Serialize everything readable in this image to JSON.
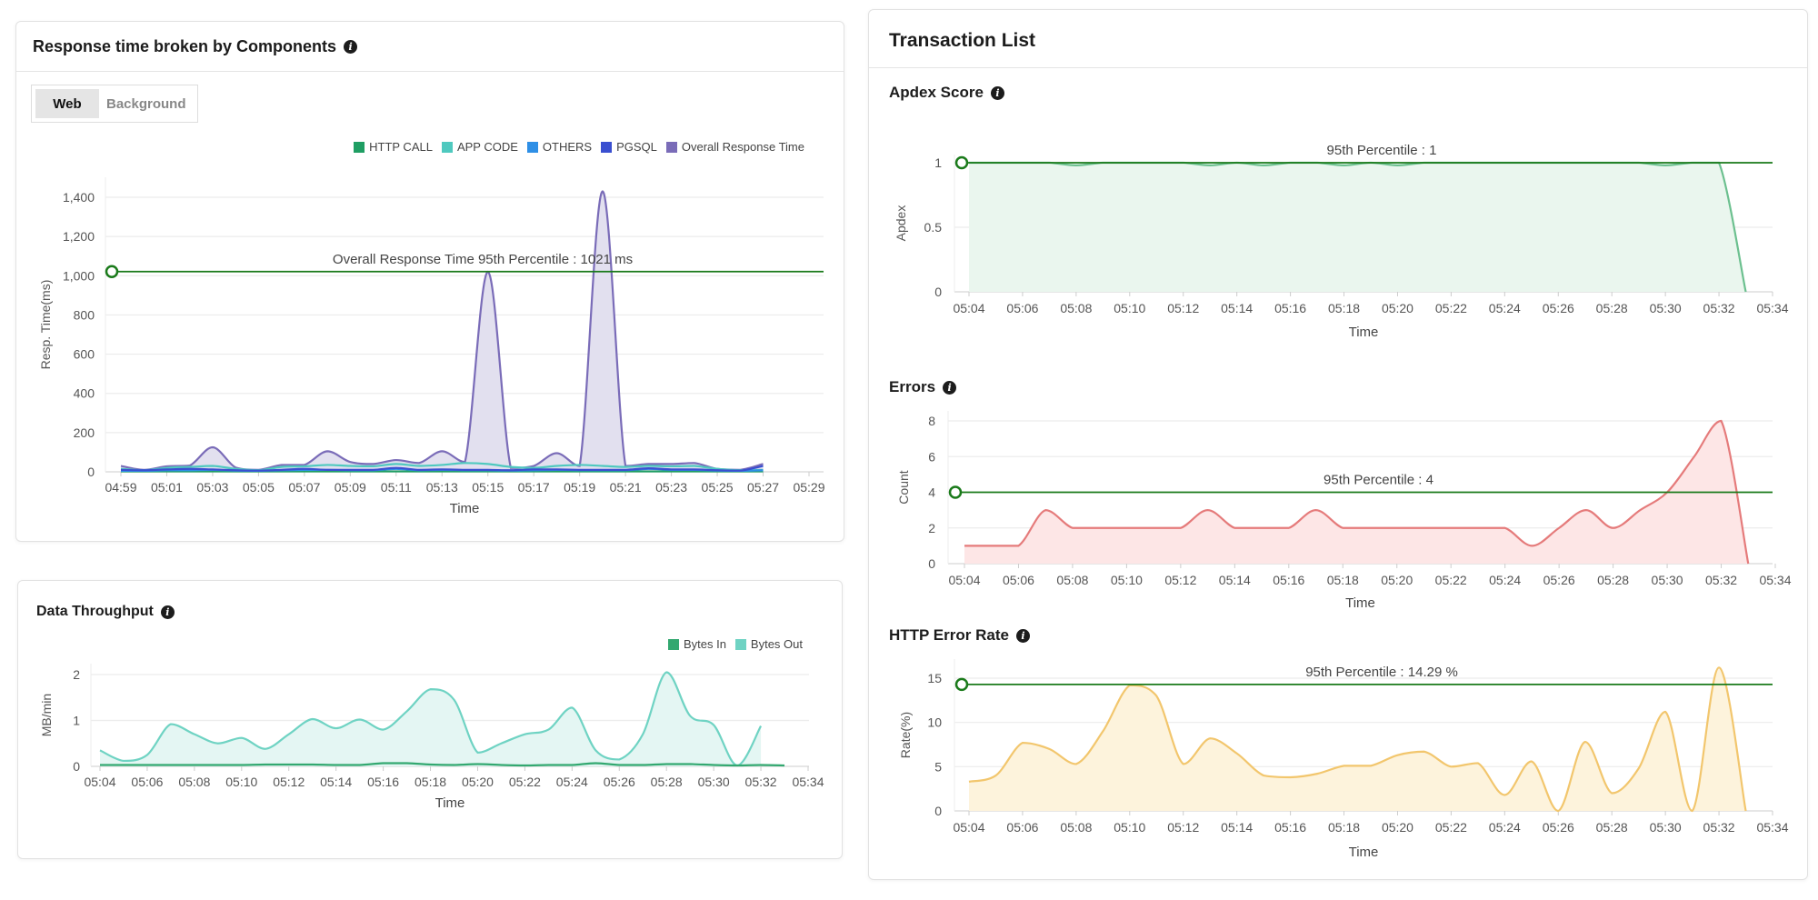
{
  "left_top_panel": {
    "title": "Response time broken by Components",
    "info_icon": "info-icon",
    "toggle": {
      "options": [
        "Web",
        "Background"
      ],
      "selected": "Web"
    }
  },
  "left_bottom_panel": {
    "title": "Data Throughput",
    "info_icon": "info-icon"
  },
  "right_panel": {
    "title": "Transaction List",
    "sections": [
      {
        "title": "Apdex Score"
      },
      {
        "title": "Errors"
      },
      {
        "title": "HTTP Error Rate"
      }
    ]
  },
  "chart_data": [
    {
      "type": "area",
      "xlabel": "Time",
      "ylabel": "Resp. Time(ms)",
      "x_ticks": [
        "04:59",
        "05:01",
        "05:03",
        "05:05",
        "05:07",
        "05:09",
        "05:11",
        "05:13",
        "05:15",
        "05:17",
        "05:19",
        "05:21",
        "05:23",
        "05:25",
        "05:27",
        "05:29"
      ],
      "y_ticks": [
        "0",
        "200",
        "400",
        "600",
        "800",
        "1,000",
        "1,200",
        "1,400"
      ],
      "y_tick_values": [
        0,
        200,
        400,
        600,
        800,
        1000,
        1200,
        1400
      ],
      "ylim": [
        0,
        1500
      ],
      "grid": true,
      "legend_placement": "top-right",
      "percentile": {
        "label": "Overall Response Time 95th Percentile : 1021 ms",
        "value": 1021,
        "color": "#1a7a1a"
      },
      "x": [
        "04:59",
        "05:00",
        "05:01",
        "05:02",
        "05:03",
        "05:04",
        "05:05",
        "05:06",
        "05:07",
        "05:08",
        "05:09",
        "05:10",
        "05:11",
        "05:12",
        "05:13",
        "05:14",
        "05:15",
        "05:16",
        "05:17",
        "05:18",
        "05:19",
        "05:20",
        "05:21",
        "05:22",
        "05:23",
        "05:24",
        "05:25",
        "05:26",
        "05:27"
      ],
      "series": [
        {
          "name": "HTTP CALL",
          "color": "#1f9e63",
          "fill": false,
          "values": [
            2,
            2,
            2,
            2,
            2,
            2,
            2,
            2,
            2,
            2,
            2,
            2,
            2,
            2,
            2,
            2,
            2,
            2,
            2,
            2,
            2,
            2,
            2,
            2,
            2,
            2,
            2,
            2,
            2
          ]
        },
        {
          "name": "APP CODE",
          "color": "#4fc9bf",
          "fill": false,
          "values": [
            15,
            8,
            20,
            25,
            30,
            15,
            8,
            25,
            28,
            35,
            30,
            28,
            40,
            30,
            35,
            45,
            40,
            25,
            20,
            30,
            35,
            30,
            25,
            30,
            28,
            30,
            15,
            8,
            10
          ]
        },
        {
          "name": "OTHERS",
          "color": "#2e8fe6",
          "fill": false,
          "values": [
            5,
            5,
            8,
            8,
            10,
            6,
            5,
            8,
            10,
            10,
            8,
            8,
            15,
            8,
            10,
            8,
            8,
            6,
            8,
            10,
            8,
            8,
            8,
            15,
            10,
            10,
            6,
            5,
            8
          ]
        },
        {
          "name": "PGSQL",
          "color": "#3a4fd0",
          "fill": false,
          "values": [
            10,
            8,
            12,
            15,
            12,
            8,
            6,
            10,
            15,
            10,
            10,
            10,
            20,
            10,
            12,
            10,
            10,
            8,
            12,
            12,
            10,
            10,
            10,
            18,
            12,
            12,
            8,
            6,
            30
          ]
        },
        {
          "name": "Overall Response Time",
          "color": "#7a6cb8",
          "fill": true,
          "fill_color": "#e2e0ef",
          "values": [
            30,
            10,
            28,
            32,
            125,
            22,
            10,
            35,
            35,
            105,
            50,
            40,
            60,
            45,
            105,
            50,
            1020,
            20,
            30,
            95,
            30,
            1430,
            30,
            40,
            40,
            45,
            15,
            10,
            40
          ]
        }
      ]
    },
    {
      "type": "area",
      "xlabel": "Time",
      "ylabel": "MB/min",
      "x_ticks": [
        "05:04",
        "05:06",
        "05:08",
        "05:10",
        "05:12",
        "05:14",
        "05:16",
        "05:18",
        "05:20",
        "05:22",
        "05:24",
        "05:26",
        "05:28",
        "05:30",
        "05:32",
        "05:34"
      ],
      "y_ticks": [
        "0",
        "1",
        "2"
      ],
      "y_tick_values": [
        0,
        1,
        2
      ],
      "ylim": [
        0,
        2.2
      ],
      "grid": true,
      "legend_placement": "top-right",
      "x": [
        "05:04",
        "05:05",
        "05:06",
        "05:07",
        "05:08",
        "05:09",
        "05:10",
        "05:11",
        "05:12",
        "05:13",
        "05:14",
        "05:15",
        "05:16",
        "05:17",
        "05:18",
        "05:19",
        "05:20",
        "05:21",
        "05:22",
        "05:23",
        "05:24",
        "05:25",
        "05:26",
        "05:27",
        "05:28",
        "05:29",
        "05:30",
        "05:31",
        "05:32",
        "05:33"
      ],
      "series": [
        {
          "name": "Bytes In",
          "color": "#33a870",
          "fill": false,
          "values": [
            0.03,
            0.03,
            0.03,
            0.03,
            0.03,
            0.03,
            0.03,
            0.04,
            0.04,
            0.04,
            0.03,
            0.03,
            0.07,
            0.07,
            0.04,
            0.03,
            0.05,
            0.03,
            0.02,
            0.03,
            0.03,
            0.07,
            0.03,
            0.03,
            0.05,
            0.05,
            0.03,
            0.02,
            0.03,
            0.02
          ]
        },
        {
          "name": "Bytes Out",
          "color": "#6fd3c3",
          "fill": true,
          "fill_color": "#e4f6f3",
          "values": [
            0.35,
            0.12,
            0.25,
            0.92,
            0.7,
            0.5,
            0.62,
            0.38,
            0.7,
            1.03,
            0.83,
            1.02,
            0.8,
            1.2,
            1.68,
            1.45,
            0.3,
            0.5,
            0.7,
            0.8,
            1.28,
            0.35,
            0.15,
            0.7,
            2.05,
            1.1,
            0.9,
            0.02,
            0.88,
            null
          ]
        }
      ]
    },
    {
      "type": "area",
      "xlabel": "Time",
      "ylabel": "Apdex",
      "x_ticks": [
        "05:04",
        "05:06",
        "05:08",
        "05:10",
        "05:12",
        "05:14",
        "05:16",
        "05:18",
        "05:20",
        "05:22",
        "05:24",
        "05:26",
        "05:28",
        "05:30",
        "05:32",
        "05:34"
      ],
      "y_ticks": [
        "0",
        "0.5",
        "1"
      ],
      "y_tick_values": [
        0,
        0.5,
        1
      ],
      "ylim": [
        0,
        1
      ],
      "grid": true,
      "percentile": {
        "label": "95th Percentile : 1",
        "value": 1,
        "color": "#1a7a1a"
      },
      "x": [
        "05:04",
        "05:05",
        "05:06",
        "05:07",
        "05:08",
        "05:09",
        "05:10",
        "05:11",
        "05:12",
        "05:13",
        "05:14",
        "05:15",
        "05:16",
        "05:17",
        "05:18",
        "05:19",
        "05:20",
        "05:21",
        "05:22",
        "05:23",
        "05:24",
        "05:25",
        "05:26",
        "05:27",
        "05:28",
        "05:29",
        "05:30",
        "05:31",
        "05:32",
        "05:33"
      ],
      "series": [
        {
          "name": "",
          "color": "#6cc08f",
          "fill": true,
          "fill_color": "#eaf6ee",
          "values": [
            1,
            1,
            1,
            1,
            0.98,
            1,
            1,
            1,
            1,
            0.98,
            1,
            0.98,
            1,
            1,
            0.98,
            1,
            0.98,
            1,
            1,
            1,
            1,
            1,
            1,
            1,
            1,
            1,
            0.98,
            1,
            1,
            0
          ]
        }
      ]
    },
    {
      "type": "area",
      "xlabel": "Time",
      "ylabel": "Count",
      "x_ticks": [
        "05:04",
        "05:06",
        "05:08",
        "05:10",
        "05:12",
        "05:14",
        "05:16",
        "05:18",
        "05:20",
        "05:22",
        "05:24",
        "05:26",
        "05:28",
        "05:30",
        "05:32",
        "05:34"
      ],
      "y_ticks": [
        "0",
        "2",
        "4",
        "6",
        "8"
      ],
      "y_tick_values": [
        0,
        2,
        4,
        6,
        8
      ],
      "ylim": [
        0,
        8
      ],
      "grid": true,
      "percentile": {
        "label": "95th Percentile : 4",
        "value": 4,
        "color": "#1a7a1a"
      },
      "x": [
        "05:04",
        "05:05",
        "05:06",
        "05:07",
        "05:08",
        "05:09",
        "05:10",
        "05:11",
        "05:12",
        "05:13",
        "05:14",
        "05:15",
        "05:16",
        "05:17",
        "05:18",
        "05:19",
        "05:20",
        "05:21",
        "05:22",
        "05:23",
        "05:24",
        "05:25",
        "05:26",
        "05:27",
        "05:28",
        "05:29",
        "05:30",
        "05:31",
        "05:32",
        "05:33"
      ],
      "series": [
        {
          "name": "",
          "color": "#e57b7b",
          "fill": true,
          "fill_color": "#fde6e6",
          "values": [
            1,
            1,
            1,
            3,
            2,
            2,
            2,
            2,
            2,
            3,
            2,
            2,
            2,
            3,
            2,
            2,
            2,
            2,
            2,
            2,
            2,
            1,
            2,
            3,
            2,
            3,
            4,
            6,
            8,
            0
          ]
        }
      ]
    },
    {
      "type": "area",
      "xlabel": "Time",
      "ylabel": "Rate(%)",
      "x_ticks": [
        "05:04",
        "05:06",
        "05:08",
        "05:10",
        "05:12",
        "05:14",
        "05:16",
        "05:18",
        "05:20",
        "05:22",
        "05:24",
        "05:26",
        "05:28",
        "05:30",
        "05:32",
        "05:34"
      ],
      "y_ticks": [
        "0",
        "5",
        "10",
        "15"
      ],
      "y_tick_values": [
        0,
        5,
        10,
        15
      ],
      "ylim": [
        0,
        17
      ],
      "grid": true,
      "percentile": {
        "label": "95th Percentile : 14.29 %",
        "value": 14.29,
        "color": "#1a7a1a"
      },
      "x": [
        "05:04",
        "05:05",
        "05:06",
        "05:07",
        "05:08",
        "05:09",
        "05:10",
        "05:11",
        "05:12",
        "05:13",
        "05:14",
        "05:15",
        "05:16",
        "05:17",
        "05:18",
        "05:19",
        "05:20",
        "05:21",
        "05:22",
        "05:23",
        "05:24",
        "05:25",
        "05:26",
        "05:27",
        "05:28",
        "05:29",
        "05:30",
        "05:31",
        "05:32",
        "05:33"
      ],
      "series": [
        {
          "name": "",
          "color": "#f2c66d",
          "fill": true,
          "fill_color": "#fdf3dc",
          "values": [
            3.3,
            4,
            7.7,
            7,
            5.3,
            9,
            14.2,
            13,
            5.3,
            8.2,
            6.5,
            4,
            3.8,
            4.2,
            5.1,
            5.1,
            6.3,
            6.7,
            5,
            5.4,
            1.8,
            5.6,
            0,
            7.8,
            2,
            4.8,
            11.2,
            0,
            16.2,
            0
          ]
        }
      ]
    }
  ]
}
